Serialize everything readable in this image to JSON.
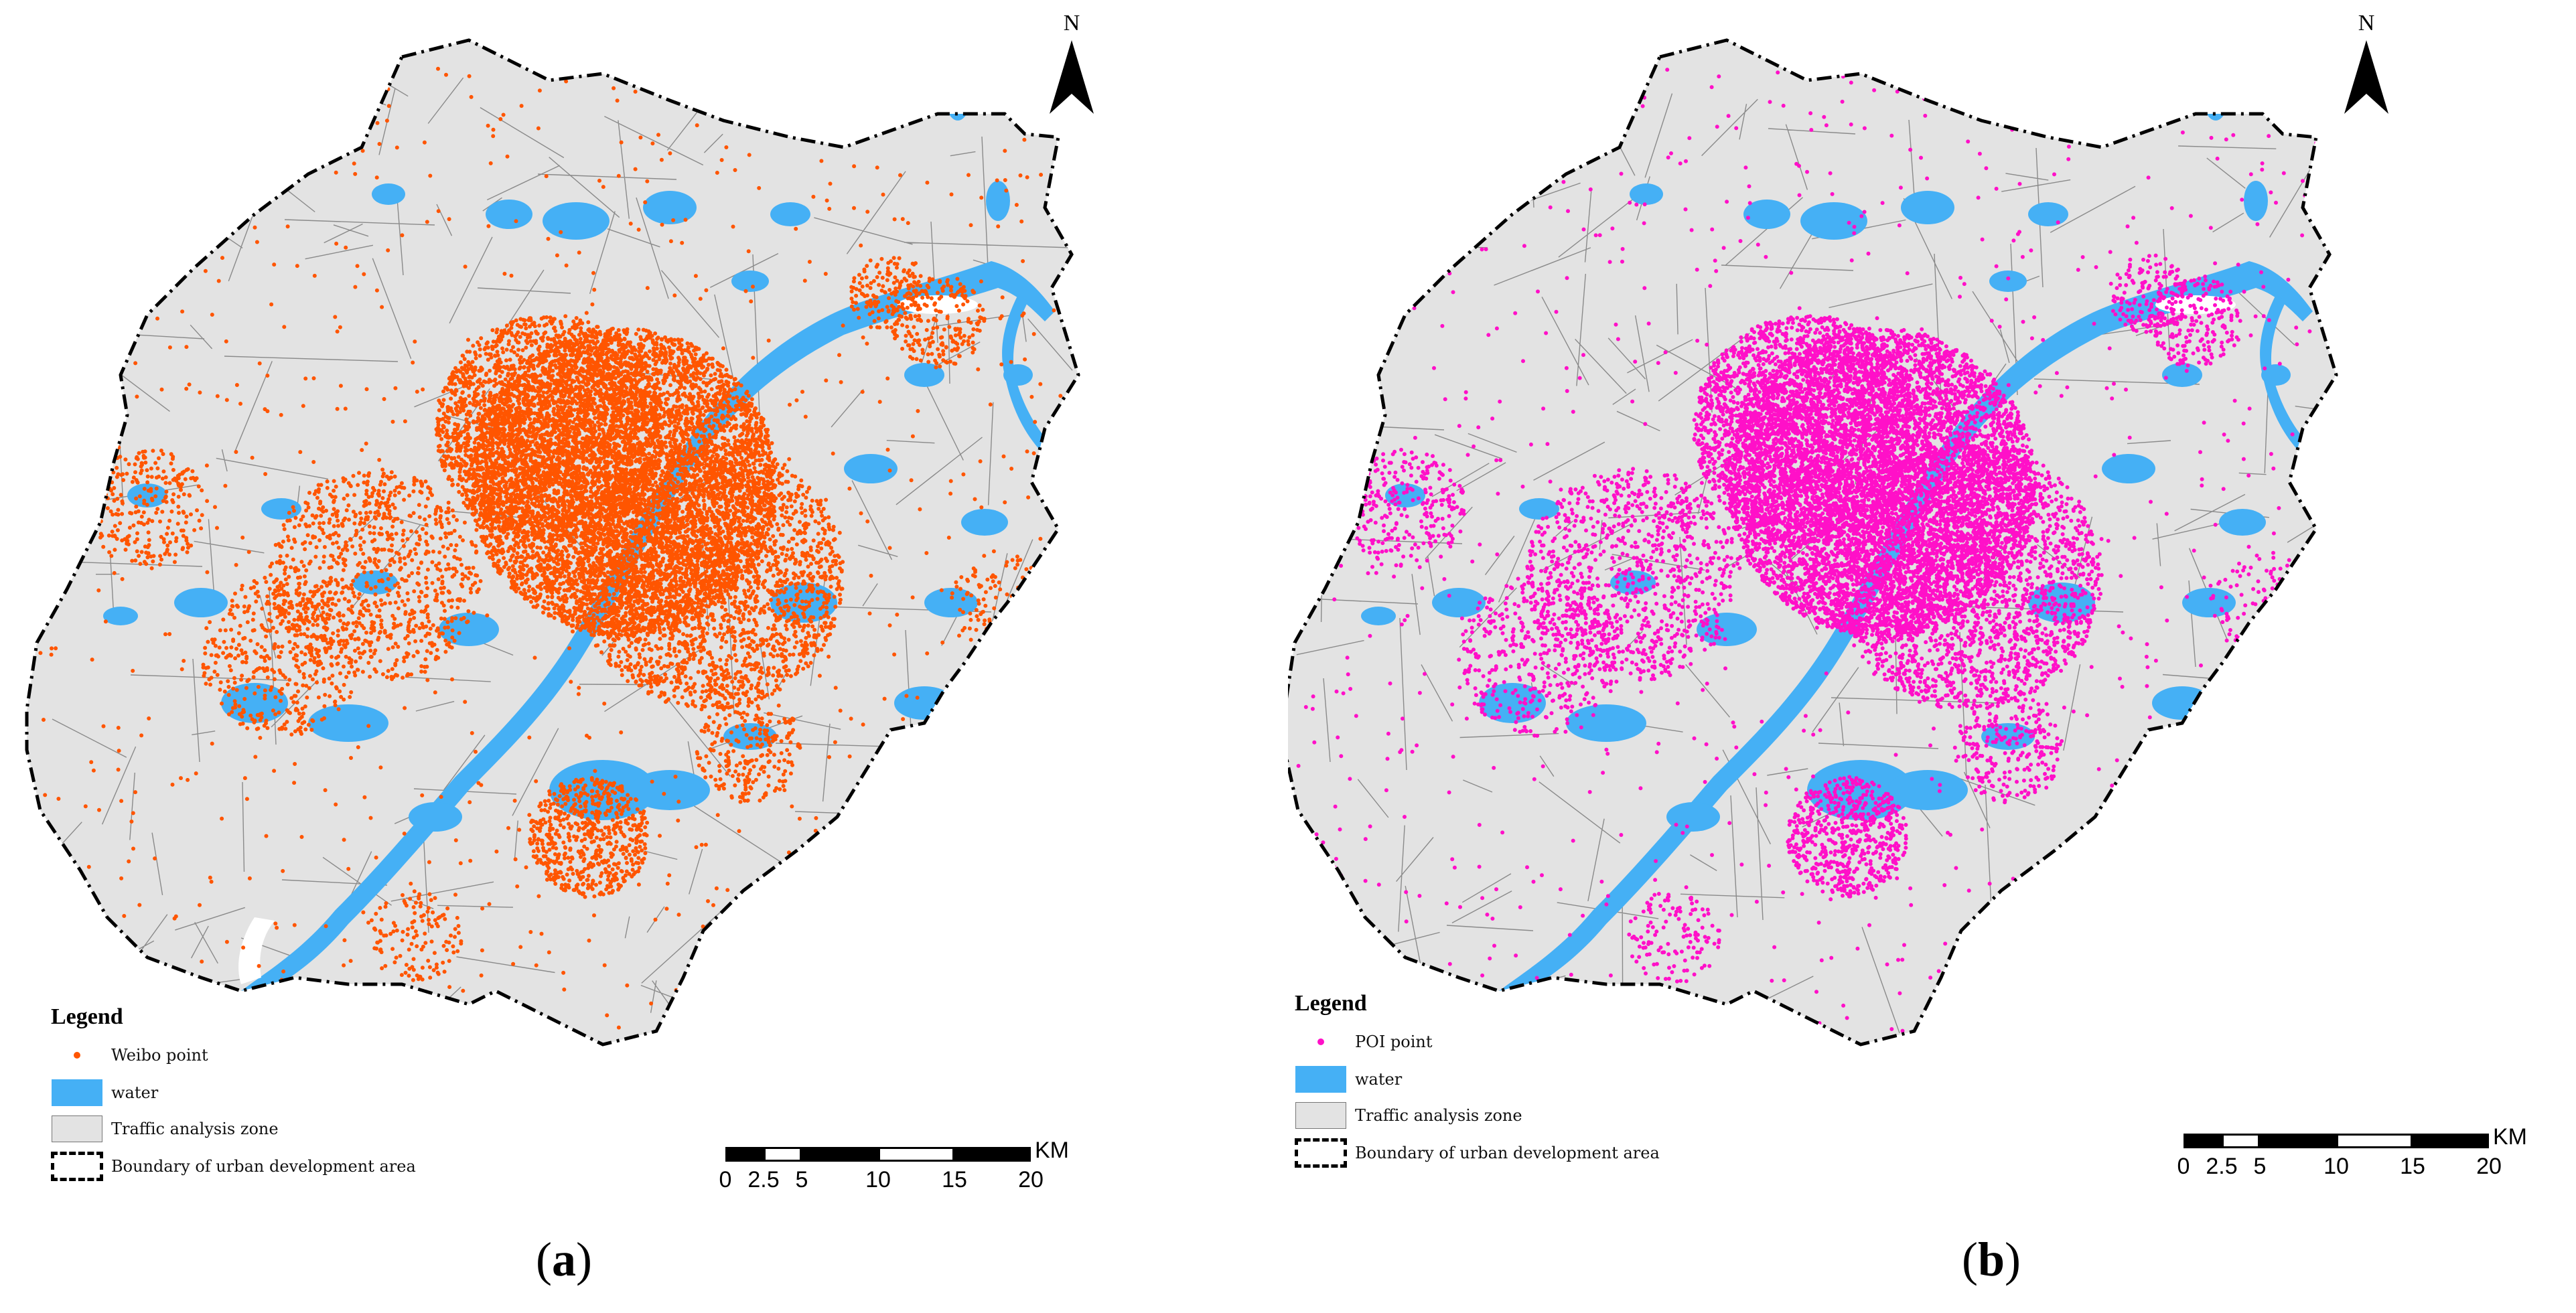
{
  "colors": {
    "weibo_point": "#ff5500",
    "poi_point": "#ff10c8",
    "water": "#45b0f5",
    "zone": "#e3e3e3",
    "road": "#6d6d6d",
    "boundary": "#000000"
  },
  "icons": {
    "north_arrow": "north-arrow-icon"
  },
  "panels": [
    {
      "id": "a",
      "north": "N",
      "legend": {
        "title": "Legend",
        "items": [
          {
            "label": "Weibo point",
            "symbol": "point"
          },
          {
            "label": "water",
            "symbol": "water"
          },
          {
            "label": "Traffic analysis zone",
            "symbol": "zone"
          },
          {
            "label": "Boundary of urban development area",
            "symbol": "boundary"
          }
        ]
      },
      "scale": {
        "ticks": [
          "0",
          "2.5",
          "5",
          "10",
          "15",
          "20"
        ],
        "unit": "KM"
      },
      "caption": {
        "open": "(",
        "letter": "a",
        "close": ")"
      }
    },
    {
      "id": "b",
      "north": "N",
      "legend": {
        "title": "Legend",
        "items": [
          {
            "label": "POI point",
            "symbol": "point"
          },
          {
            "label": "water",
            "symbol": "water"
          },
          {
            "label": "Traffic analysis zone",
            "symbol": "zone"
          },
          {
            "label": "Boundary of urban development area",
            "symbol": "boundary"
          }
        ]
      },
      "scale": {
        "ticks": [
          "0",
          "2.5",
          "5",
          "10",
          "15",
          "20"
        ],
        "unit": "KM"
      },
      "caption": {
        "open": "(",
        "letter": "b",
        "close": ")"
      }
    }
  ]
}
